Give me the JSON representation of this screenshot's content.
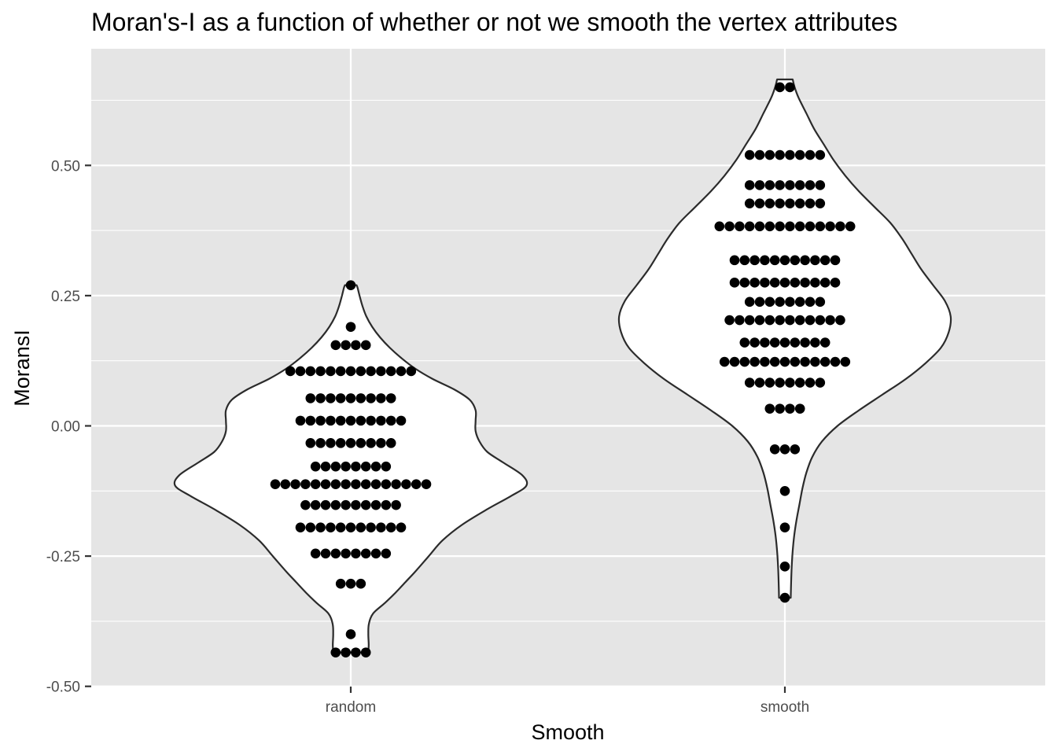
{
  "chart_data": {
    "type": "violin-dotplot",
    "title": "Moran's-I as a function of whether or not we smooth the vertex attributes",
    "xlabel": "Smooth",
    "ylabel": "MoransI",
    "categories": [
      "random",
      "smooth"
    ],
    "ylim": [
      -0.5,
      0.7
    ],
    "yticks": [
      -0.5,
      -0.25,
      0.0,
      0.25,
      0.5
    ],
    "ytick_labels": [
      "-0.50",
      "-0.25",
      "0.00",
      "0.25",
      "0.50"
    ],
    "panel_background": "#e5e5e5",
    "grid_color": "#ffffff",
    "violin_fill": "#ffffff",
    "violin_stroke": "#2b2b2b",
    "dot_color": "#000000",
    "series": [
      {
        "category": "random",
        "violin_range": [
          -0.435,
          0.27
        ],
        "violin_profile": [
          [
            -0.435,
            0.09
          ],
          [
            -0.42,
            0.092
          ],
          [
            -0.4,
            0.09
          ],
          [
            -0.38,
            0.093
          ],
          [
            -0.36,
            0.115
          ],
          [
            -0.34,
            0.175
          ],
          [
            -0.32,
            0.23
          ],
          [
            -0.3,
            0.28
          ],
          [
            -0.28,
            0.33
          ],
          [
            -0.25,
            0.4
          ],
          [
            -0.22,
            0.47
          ],
          [
            -0.19,
            0.57
          ],
          [
            -0.16,
            0.7
          ],
          [
            -0.135,
            0.82
          ],
          [
            -0.115,
            0.9
          ],
          [
            -0.095,
            0.88
          ],
          [
            -0.07,
            0.78
          ],
          [
            -0.05,
            0.7
          ],
          [
            -0.03,
            0.66
          ],
          [
            -0.01,
            0.64
          ],
          [
            0.01,
            0.64
          ],
          [
            0.03,
            0.64
          ],
          [
            0.05,
            0.61
          ],
          [
            0.07,
            0.53
          ],
          [
            0.09,
            0.42
          ],
          [
            0.11,
            0.33
          ],
          [
            0.13,
            0.26
          ],
          [
            0.15,
            0.2
          ],
          [
            0.17,
            0.15
          ],
          [
            0.19,
            0.11
          ],
          [
            0.21,
            0.08
          ],
          [
            0.23,
            0.06
          ],
          [
            0.25,
            0.045
          ],
          [
            0.265,
            0.035
          ],
          [
            0.27,
            0.03
          ]
        ],
        "dot_bins": [
          {
            "y": -0.435,
            "count": 4
          },
          {
            "y": -0.4,
            "count": 1
          },
          {
            "y": -0.303,
            "count": 3
          },
          {
            "y": -0.245,
            "count": 8
          },
          {
            "y": -0.195,
            "count": 11
          },
          {
            "y": -0.152,
            "count": 10
          },
          {
            "y": -0.112,
            "count": 16
          },
          {
            "y": -0.078,
            "count": 8
          },
          {
            "y": -0.033,
            "count": 9
          },
          {
            "y": 0.01,
            "count": 11
          },
          {
            "y": 0.053,
            "count": 9
          },
          {
            "y": 0.105,
            "count": 13
          },
          {
            "y": 0.155,
            "count": 4
          },
          {
            "y": 0.19,
            "count": 1
          },
          {
            "y": 0.27,
            "count": 1
          }
        ]
      },
      {
        "category": "smooth",
        "violin_range": [
          -0.33,
          0.665
        ],
        "violin_profile": [
          [
            -0.33,
            0.03
          ],
          [
            -0.3,
            0.032
          ],
          [
            -0.27,
            0.035
          ],
          [
            -0.24,
            0.04
          ],
          [
            -0.21,
            0.048
          ],
          [
            -0.18,
            0.06
          ],
          [
            -0.15,
            0.075
          ],
          [
            -0.12,
            0.09
          ],
          [
            -0.09,
            0.11
          ],
          [
            -0.06,
            0.14
          ],
          [
            -0.03,
            0.19
          ],
          [
            0.0,
            0.27
          ],
          [
            0.03,
            0.38
          ],
          [
            0.06,
            0.5
          ],
          [
            0.09,
            0.62
          ],
          [
            0.12,
            0.72
          ],
          [
            0.15,
            0.8
          ],
          [
            0.18,
            0.84
          ],
          [
            0.21,
            0.85
          ],
          [
            0.24,
            0.82
          ],
          [
            0.27,
            0.76
          ],
          [
            0.3,
            0.7
          ],
          [
            0.33,
            0.65
          ],
          [
            0.36,
            0.6
          ],
          [
            0.39,
            0.54
          ],
          [
            0.42,
            0.46
          ],
          [
            0.45,
            0.38
          ],
          [
            0.48,
            0.31
          ],
          [
            0.51,
            0.25
          ],
          [
            0.54,
            0.2
          ],
          [
            0.57,
            0.15
          ],
          [
            0.6,
            0.11
          ],
          [
            0.63,
            0.07
          ],
          [
            0.65,
            0.05
          ],
          [
            0.665,
            0.04
          ]
        ],
        "dot_bins": [
          {
            "y": -0.33,
            "count": 1
          },
          {
            "y": -0.27,
            "count": 1
          },
          {
            "y": -0.195,
            "count": 1
          },
          {
            "y": -0.125,
            "count": 1
          },
          {
            "y": -0.045,
            "count": 3
          },
          {
            "y": 0.033,
            "count": 4
          },
          {
            "y": 0.083,
            "count": 8
          },
          {
            "y": 0.123,
            "count": 13
          },
          {
            "y": 0.16,
            "count": 9
          },
          {
            "y": 0.203,
            "count": 12
          },
          {
            "y": 0.238,
            "count": 8
          },
          {
            "y": 0.275,
            "count": 11
          },
          {
            "y": 0.318,
            "count": 11
          },
          {
            "y": 0.383,
            "count": 14
          },
          {
            "y": 0.427,
            "count": 8
          },
          {
            "y": 0.462,
            "count": 8
          },
          {
            "y": 0.52,
            "count": 8
          },
          {
            "y": 0.65,
            "count": 2
          }
        ]
      }
    ]
  }
}
